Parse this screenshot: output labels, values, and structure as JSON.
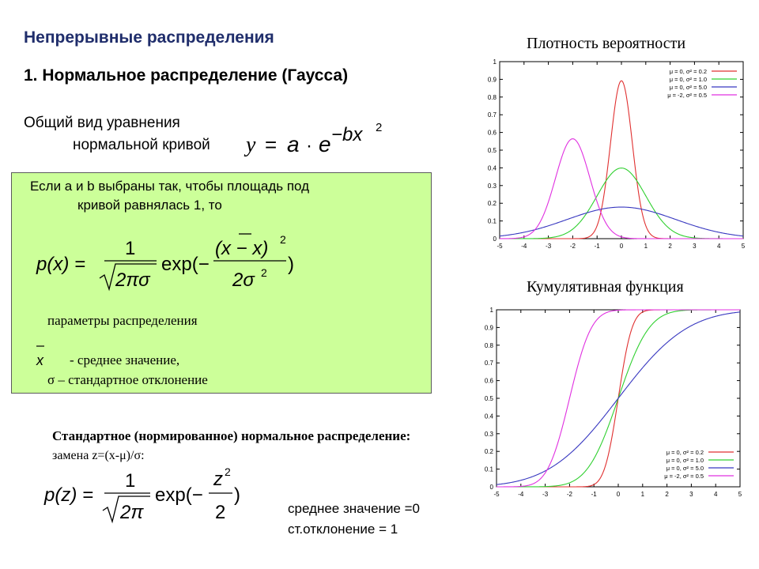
{
  "slide": {
    "title": "Непрерывные распределения",
    "section": "1. Нормальное распределение (Гаусса)",
    "general_line1": "Общий вид уравнения",
    "general_line2": "нормальной кривой",
    "box_line1": "Если a и b выбраны так, чтобы площадь под",
    "box_line2": "кривой равнялась 1, то",
    "params_label": "параметры распределения",
    "mean_desc": "- среднее значение,",
    "sd_desc": "σ – стандартное отклонение",
    "std_title": "Стандартное (нормированное) нормальное распределение:",
    "std_sub": "замена z=(x-μ)/σ:",
    "mean_result": "среднее значение =0",
    "sd_result": "ст.отклонение = 1",
    "pdf_title": "Плотность вероятности",
    "cdf_title": "Кумулятивная функция"
  },
  "formulas": {
    "general": {
      "lhs": "y",
      "eq": "=",
      "a": "a",
      "dot": "·",
      "e": "e",
      "exp": "−bx",
      "exp_pow": "2"
    },
    "density": {
      "lhs": "p(x) =",
      "num": "1",
      "den": "2πσ",
      "exp_open": "exp(−",
      "exp_num": "(x − x)",
      "exp_num_pow": "2",
      "exp_den": "2σ",
      "exp_den_pow": "2",
      "exp_close": ")"
    },
    "mean_symbol": "x",
    "standard": {
      "lhs": "p(z) =",
      "num": "1",
      "den": "2π",
      "exp_open": "exp(−",
      "exp_num": "z",
      "exp_num_pow": "2",
      "exp_den": "2",
      "exp_close": ")"
    }
  },
  "chart_data": [
    {
      "type": "line",
      "function": "normal_pdf",
      "xlim": [
        -5,
        5
      ],
      "ylim": [
        0,
        1
      ],
      "x_ticks": [
        "-5",
        "-4",
        "-3",
        "-2",
        "-1",
        "0",
        "1",
        "2",
        "3",
        "4",
        "5"
      ],
      "y_ticks": [
        "0",
        "0.1",
        "0.2",
        "0.3",
        "0.4",
        "0.5",
        "0.6",
        "0.7",
        "0.8",
        "0.9",
        "1"
      ],
      "legend": "top-right",
      "series": [
        {
          "name": "μ = 0, σ² = 0.2",
          "mu": 0,
          "var": 0.2,
          "color": "#e03030"
        },
        {
          "name": "μ = 0, σ² = 1.0",
          "mu": 0,
          "var": 1.0,
          "color": "#30d030"
        },
        {
          "name": "μ = 0, σ² = 5.0",
          "mu": 0,
          "var": 5.0,
          "color": "#3838c0"
        },
        {
          "name": "μ = -2, σ² = 0.5",
          "mu": -2,
          "var": 0.5,
          "color": "#e030e0"
        }
      ]
    },
    {
      "type": "line",
      "function": "normal_cdf",
      "xlim": [
        -5,
        5
      ],
      "ylim": [
        0,
        1
      ],
      "x_ticks": [
        "-5",
        "-4",
        "-3",
        "-2",
        "-1",
        "0",
        "1",
        "2",
        "3",
        "4",
        "5"
      ],
      "y_ticks": [
        "0",
        "0.1",
        "0.2",
        "0.3",
        "0.4",
        "0.5",
        "0.6",
        "0.7",
        "0.8",
        "0.9",
        "1"
      ],
      "legend": "bottom-right",
      "series": [
        {
          "name": "μ = 0, σ² = 0.2",
          "mu": 0,
          "var": 0.2,
          "color": "#e03030"
        },
        {
          "name": "μ = 0, σ² = 1.0",
          "mu": 0,
          "var": 1.0,
          "color": "#30d030"
        },
        {
          "name": "μ = 0, σ² = 5.0",
          "mu": 0,
          "var": 5.0,
          "color": "#3838c0"
        },
        {
          "name": "μ = -2, σ² = 0.5",
          "mu": -2,
          "var": 0.5,
          "color": "#e030e0"
        }
      ]
    }
  ]
}
